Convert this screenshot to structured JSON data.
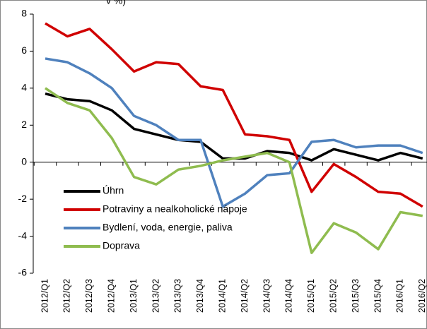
{
  "chart_data": {
    "type": "line",
    "title": "v %)",
    "categories": [
      "2012/Q1",
      "2012/Q2",
      "2012/Q3",
      "2012/Q4",
      "2013/Q1",
      "2013/Q2",
      "2013/Q3",
      "2013/Q4",
      "2014/Q1",
      "2014/Q2",
      "2014/Q3",
      "2014/Q4",
      "2015/Q1",
      "2015/Q2",
      "2015/Q3",
      "2015/Q4",
      "2016/Q1",
      "2016/Q2"
    ],
    "series": [
      {
        "name": "Úhrn",
        "color": "#000000",
        "values": [
          3.7,
          3.4,
          3.3,
          2.8,
          1.8,
          1.5,
          1.2,
          1.1,
          0.2,
          0.2,
          0.6,
          0.5,
          0.1,
          0.7,
          0.4,
          0.1,
          0.5,
          0.2
        ]
      },
      {
        "name": "Potraviny a nealkoholické nápoje",
        "color": "#d00000",
        "values": [
          7.5,
          6.8,
          7.2,
          6.1,
          4.9,
          5.4,
          5.3,
          4.1,
          3.9,
          1.5,
          1.4,
          1.2,
          -1.6,
          -0.1,
          -0.8,
          -1.6,
          -1.7,
          -2.4
        ]
      },
      {
        "name": "Bydlení, voda, energie, paliva",
        "color": "#4f81bd",
        "values": [
          5.6,
          5.4,
          4.8,
          4.0,
          2.5,
          2.0,
          1.2,
          1.2,
          -2.4,
          -1.7,
          -0.7,
          -0.6,
          1.1,
          1.2,
          0.8,
          0.9,
          0.9,
          0.5
        ]
      },
      {
        "name": "Doprava",
        "color": "#8fbc4f",
        "values": [
          4.0,
          3.2,
          2.8,
          1.3,
          -0.8,
          -1.2,
          -0.4,
          -0.2,
          0.1,
          0.3,
          0.5,
          0.0,
          -4.9,
          -3.3,
          -3.8,
          -4.7,
          -2.7,
          -2.9
        ]
      }
    ],
    "ylim": [
      -6,
      8
    ],
    "yticks": [
      -6,
      -4,
      -2,
      0,
      2,
      4,
      6,
      8
    ],
    "grid": false
  }
}
